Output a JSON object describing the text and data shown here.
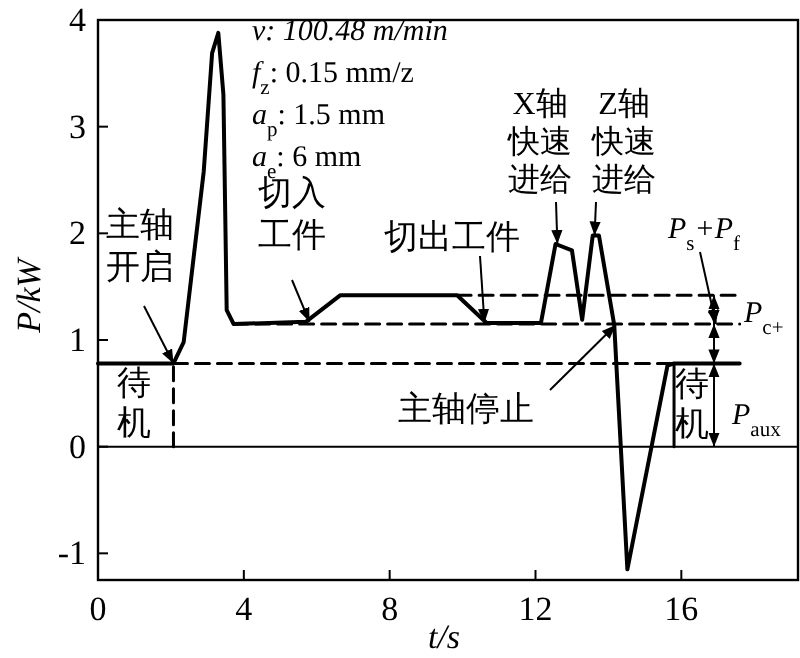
{
  "chart_data": {
    "type": "line",
    "xlabel": "t/s",
    "ylabel": "P/kW",
    "xlim": [
      0,
      19.2
    ],
    "ylim": [
      -1.25,
      4
    ],
    "xticks": [
      0,
      4,
      8,
      12,
      16
    ],
    "yticks": [
      -1,
      0,
      1,
      2,
      3,
      4
    ],
    "grid": false,
    "marker": "none",
    "series": [
      {
        "color": "#000000",
        "line_style": "solid",
        "x": [
          0,
          2.07,
          2.35,
          2.9,
          3.13,
          3.3,
          3.44,
          3.53,
          3.72,
          5.7,
          6.65,
          9.85,
          10.66,
          12.15,
          12.55,
          13.0,
          13.28,
          13.57,
          13.74,
          14.16,
          14.52,
          15.62,
          15.8,
          17.6
        ],
        "values": [
          0.78,
          0.78,
          0.98,
          2.58,
          3.69,
          3.88,
          3.3,
          1.28,
          1.15,
          1.17,
          1.42,
          1.42,
          1.16,
          1.16,
          1.9,
          1.84,
          1.19,
          1.98,
          1.98,
          1.14,
          -1.15,
          0.76,
          0.78,
          0.78
        ]
      },
      {
        "color": "#000000",
        "line_style": "dashed",
        "x": [
          2.07,
          17.6
        ],
        "values": [
          0.78,
          0.78
        ]
      },
      {
        "color": "#000000",
        "line_style": "dashed",
        "x": [
          3.72,
          17.6
        ],
        "values": [
          1.15,
          1.15
        ]
      },
      {
        "color": "#000000",
        "line_style": "dashed",
        "x": [
          9.85,
          17.6
        ],
        "values": [
          1.42,
          1.42
        ]
      },
      {
        "color": "#000000",
        "line_style": "dashed",
        "x": [
          2.07,
          2.07
        ],
        "values": [
          0,
          0.78
        ]
      },
      {
        "color": "#000000",
        "line_style": "solid",
        "x": [
          15.8,
          15.8
        ],
        "values": [
          0,
          0.78
        ]
      }
    ],
    "ref_lines": [
      {
        "axis": "y",
        "value": 0
      }
    ],
    "annotations": [
      "v: 100.48 m/min",
      "f$_{z}$: 0.15 mm/z",
      "a$_{p}$: 1.5 mm",
      "a$_{e}$: 6 mm",
      {
        "text": "主轴开启",
        "x": 2.07,
        "y": 0.78
      },
      {
        "text": "切入工件",
        "x": 5.8,
        "y": 1.17
      },
      {
        "text": "切出工件",
        "x": 10.6,
        "y": 1.16
      },
      {
        "text": "X轴快速进给",
        "x": 12.6,
        "y": 1.9
      },
      {
        "text": "Z轴快速进给",
        "x": 13.62,
        "y": 1.98
      },
      {
        "text": "主轴停止",
        "x": 14.2,
        "y": 1.14
      },
      "待机",
      {
        "text": "待机",
        "x": 15.8,
        "y": 0.39
      },
      {
        "text": "P$_{s}$+P$_{f}$",
        "x": 16.95,
        "y": 1.15
      },
      "P$_{c+}$",
      "P$_{aux}$"
    ]
  }
}
